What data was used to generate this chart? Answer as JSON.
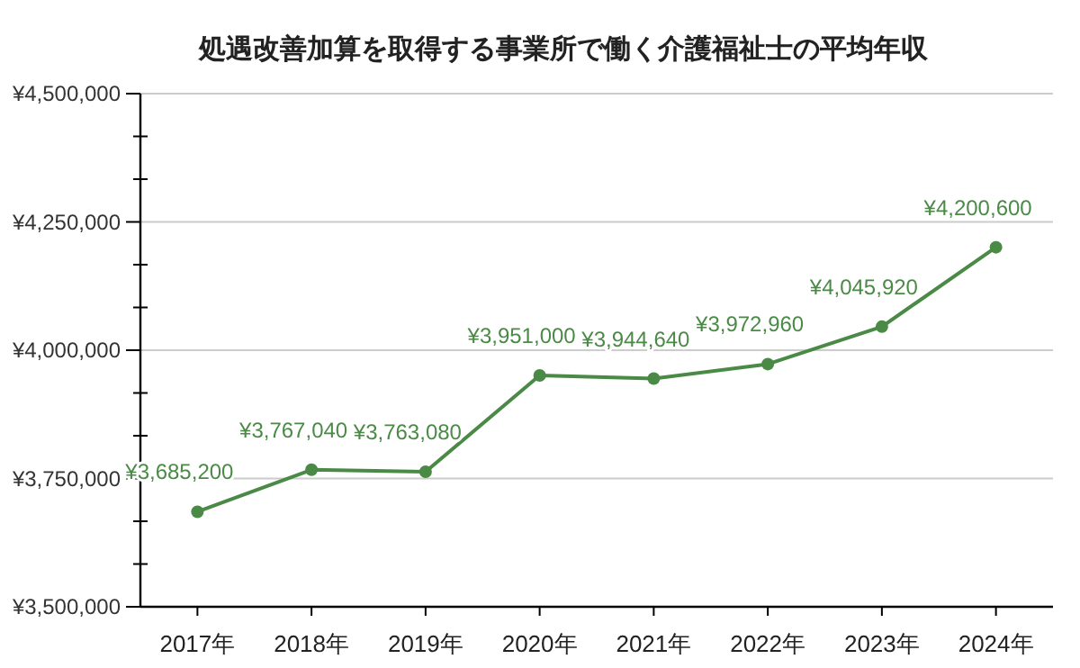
{
  "chart_data": {
    "type": "line",
    "title": "処遇改善加算を取得する事業所で働く介護福祉士の平均年収",
    "categories": [
      "2017年",
      "2018年",
      "2019年",
      "2020年",
      "2021年",
      "2022年",
      "2023年",
      "2024年"
    ],
    "series": [
      {
        "color": "#4a8a46",
        "values": [
          3685200,
          3767040,
          3763080,
          3951000,
          3944640,
          3972960,
          4045920,
          4200600
        ]
      }
    ],
    "value_labels": [
      "¥3,685,200",
      "¥3,767,040",
      "¥3,763,080",
      "¥3,951,000",
      "¥3,944,640",
      "¥3,972,960",
      "¥4,045,920",
      "¥4,200,600"
    ],
    "ylim": [
      3500000,
      4500000
    ],
    "yticks": [
      {
        "value": 3500000,
        "label": "¥3,500,000"
      },
      {
        "value": 3583333,
        "label": null
      },
      {
        "value": 3666667,
        "label": null
      },
      {
        "value": 3750000,
        "label": "¥3,750,000"
      },
      {
        "value": 3833333,
        "label": null
      },
      {
        "value": 3916667,
        "label": null
      },
      {
        "value": 4000000,
        "label": "¥4,000,000"
      },
      {
        "value": 4083333,
        "label": null
      },
      {
        "value": 4166667,
        "label": null
      },
      {
        "value": 4250000,
        "label": "¥4,250,000"
      },
      {
        "value": 4333333,
        "label": null
      },
      {
        "value": 4416667,
        "label": null
      },
      {
        "value": 4500000,
        "label": "¥4,500,000"
      }
    ],
    "grid": "y",
    "marker": "circle",
    "line_style": "solid"
  }
}
